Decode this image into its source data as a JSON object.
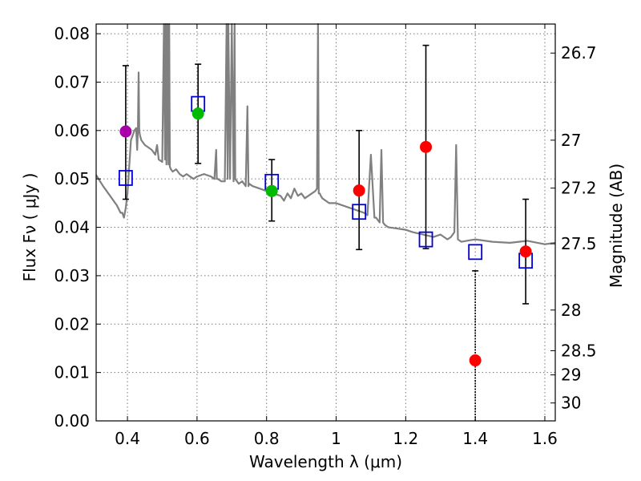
{
  "chart_data": {
    "type": "scatter",
    "xlabel": "Wavelength  λ (μm)",
    "ylabel": "Flux  Fν  ( μJy )",
    "ylabel_right": "Magnitude (AB)",
    "xlim": [
      0.31,
      1.63
    ],
    "ylim": [
      0.0,
      0.082
    ],
    "x_ticks": [
      0.4,
      0.6,
      0.8,
      1.0,
      1.2,
      1.4,
      1.6
    ],
    "x_tick_labels": [
      "0.4",
      "0.6",
      "0.8",
      "1",
      "1.2",
      "1.4",
      "1.6"
    ],
    "y_ticks": [
      0.0,
      0.01,
      0.02,
      0.03,
      0.04,
      0.05,
      0.06,
      0.07,
      0.08
    ],
    "y_tick_labels": [
      "0.00",
      "0.01",
      "0.02",
      "0.03",
      "0.04",
      "0.05",
      "0.06",
      "0.07",
      "0.08"
    ],
    "right_ticks": [
      {
        "label": "26.7",
        "flux": 0.076
      },
      {
        "label": "27",
        "flux": 0.058
      },
      {
        "label": "27.2",
        "flux": 0.0481
      },
      {
        "label": "27.5",
        "flux": 0.0366
      },
      {
        "label": "28",
        "flux": 0.0229
      },
      {
        "label": "28.5",
        "flux": 0.0145
      },
      {
        "label": "29",
        "flux": 0.0095
      },
      {
        "label": "30",
        "flux": 0.0037
      }
    ],
    "grid": true,
    "colors": {
      "model": "#808080",
      "observed_violet": "#aa00aa",
      "observed_green": "#00bb00",
      "observed_red": "#ff0000",
      "model_box": "#0000dd",
      "error_bar": "#000000"
    },
    "series": [
      {
        "name": "observed",
        "marker": "circle",
        "points": [
          {
            "x": 0.395,
            "y": 0.0598,
            "err_low": 0.014,
            "err_high": 0.0136,
            "color": "observed_violet"
          },
          {
            "x": 0.603,
            "y": 0.0635,
            "err_low": 0.0103,
            "err_high": 0.0102,
            "color": "observed_green"
          },
          {
            "x": 0.815,
            "y": 0.0475,
            "err_low": 0.0062,
            "err_high": 0.0065,
            "color": "observed_green"
          },
          {
            "x": 1.066,
            "y": 0.0476,
            "err_low": 0.0122,
            "err_high": 0.0124,
            "color": "observed_red"
          },
          {
            "x": 1.258,
            "y": 0.0566,
            "err_low": 0.021,
            "err_high": 0.021,
            "color": "observed_red"
          },
          {
            "x": 1.4,
            "y": 0.0125,
            "err_low": 0.0125,
            "err_high": 0.0185,
            "color": "observed_red"
          },
          {
            "x": 1.545,
            "y": 0.035,
            "err_low": 0.0108,
            "err_high": 0.0108,
            "color": "observed_red"
          }
        ]
      },
      {
        "name": "model-photometry",
        "marker": "open-square",
        "points": [
          {
            "x": 0.395,
            "y": 0.0502
          },
          {
            "x": 0.603,
            "y": 0.0655
          },
          {
            "x": 0.815,
            "y": 0.0494
          },
          {
            "x": 1.066,
            "y": 0.0432
          },
          {
            "x": 1.258,
            "y": 0.0375
          },
          {
            "x": 1.4,
            "y": 0.0349
          },
          {
            "x": 1.545,
            "y": 0.0331
          }
        ]
      },
      {
        "name": "model-spectrum",
        "style": "line",
        "x": [
          0.31,
          0.33,
          0.35,
          0.37,
          0.38,
          0.385,
          0.39,
          0.395,
          0.4,
          0.41,
          0.42,
          0.425,
          0.428,
          0.43,
          0.432,
          0.434,
          0.436,
          0.44,
          0.45,
          0.46,
          0.47,
          0.48,
          0.485,
          0.49,
          0.5,
          0.505,
          0.508,
          0.51,
          0.512,
          0.515,
          0.518,
          0.52,
          0.522,
          0.525,
          0.53,
          0.54,
          0.55,
          0.56,
          0.57,
          0.58,
          0.59,
          0.6,
          0.62,
          0.64,
          0.65,
          0.655,
          0.657,
          0.66,
          0.67,
          0.68,
          0.685,
          0.688,
          0.69,
          0.695,
          0.7,
          0.705,
          0.708,
          0.71,
          0.715,
          0.72,
          0.73,
          0.74,
          0.745,
          0.748,
          0.75,
          0.76,
          0.78,
          0.8,
          0.82,
          0.84,
          0.85,
          0.86,
          0.87,
          0.88,
          0.89,
          0.9,
          0.91,
          0.92,
          0.93,
          0.94,
          0.945,
          0.948,
          0.95,
          0.953,
          0.956,
          0.96,
          0.98,
          1.0,
          1.02,
          1.04,
          1.06,
          1.08,
          1.09,
          1.1,
          1.11,
          1.115,
          1.12,
          1.125,
          1.13,
          1.135,
          1.14,
          1.15,
          1.17,
          1.2,
          1.22,
          1.25,
          1.28,
          1.3,
          1.32,
          1.33,
          1.34,
          1.345,
          1.35,
          1.36,
          1.4,
          1.45,
          1.5,
          1.55,
          1.6,
          1.63
        ],
        "y": [
          0.0508,
          0.0485,
          0.0465,
          0.0445,
          0.043,
          0.043,
          0.042,
          0.044,
          0.047,
          0.058,
          0.06,
          0.0605,
          0.056,
          0.06,
          0.072,
          0.06,
          0.059,
          0.058,
          0.057,
          0.0565,
          0.056,
          0.055,
          0.057,
          0.054,
          0.0535,
          0.09,
          0.054,
          0.09,
          0.053,
          0.09,
          0.053,
          0.09,
          0.0525,
          0.052,
          0.0515,
          0.052,
          0.051,
          0.0505,
          0.051,
          0.0505,
          0.05,
          0.0505,
          0.051,
          0.0505,
          0.05,
          0.056,
          0.05,
          0.05,
          0.0495,
          0.0495,
          0.09,
          0.05,
          0.09,
          0.05,
          0.09,
          0.0495,
          0.09,
          0.05,
          0.0495,
          0.049,
          0.0495,
          0.0485,
          0.065,
          0.0485,
          0.049,
          0.0485,
          0.048,
          0.0475,
          0.047,
          0.0465,
          0.0455,
          0.047,
          0.046,
          0.048,
          0.0465,
          0.047,
          0.046,
          0.0465,
          0.047,
          0.0475,
          0.048,
          0.09,
          0.047,
          0.047,
          0.0465,
          0.046,
          0.045,
          0.045,
          0.0445,
          0.044,
          0.0435,
          0.043,
          0.0425,
          0.055,
          0.042,
          0.042,
          0.0415,
          0.041,
          0.056,
          0.041,
          0.0405,
          0.04,
          0.0398,
          0.0395,
          0.039,
          0.0385,
          0.038,
          0.0385,
          0.0375,
          0.038,
          0.039,
          0.057,
          0.0375,
          0.037,
          0.0375,
          0.037,
          0.0368,
          0.0372,
          0.0365,
          0.0368
        ]
      }
    ]
  }
}
